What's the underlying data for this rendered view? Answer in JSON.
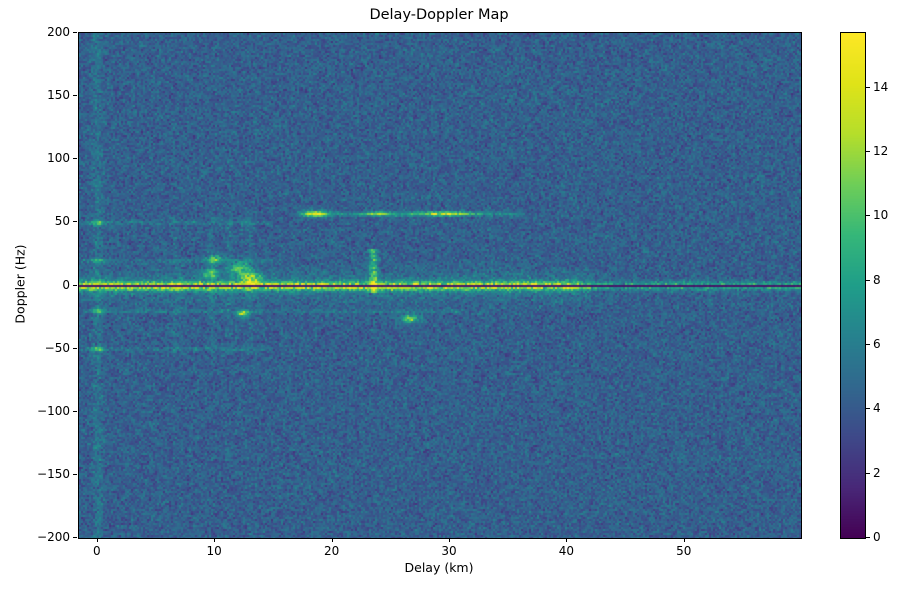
{
  "figure": {
    "title": "Delay-Doppler Map",
    "xlabel": "Delay (km)",
    "ylabel": "Doppler (Hz)"
  },
  "chart_data": {
    "type": "heatmap",
    "title": "Delay-Doppler Map",
    "xlabel": "Delay (km)",
    "ylabel": "Doppler (Hz)",
    "x_range": [
      -1.6,
      59.9
    ],
    "y_range": [
      -200,
      200
    ],
    "x_ticks": [
      0,
      10,
      20,
      30,
      40,
      50
    ],
    "y_ticks": [
      -200,
      -150,
      -100,
      -50,
      0,
      50,
      100,
      150,
      200
    ],
    "colorbar": {
      "range": [
        0,
        15.7
      ],
      "ticks": [
        0,
        2,
        4,
        6,
        8,
        10,
        12,
        14
      ],
      "colormap": "viridis"
    },
    "background_noise": {
      "mean": 4.3,
      "std": 0.85
    },
    "features": [
      {
        "kind": "glow",
        "doppler_sigma": 11,
        "delay_range": [
          -1.6,
          42
        ],
        "amp": 1.5,
        "note": "diffuse clutter around zero Doppler at near delays"
      },
      {
        "kind": "vline",
        "delay": 0,
        "doppler_range": [
          -200,
          200
        ],
        "amp": 1.3,
        "sigma_km": 0.45,
        "note": "zero-delay column"
      },
      {
        "kind": "vline",
        "delay": 6.6,
        "doppler_range": [
          -55,
          55
        ],
        "amp": 0.9,
        "sigma_km": 0.3
      },
      {
        "kind": "vline",
        "delay": 9.7,
        "doppler_range": [
          -55,
          55
        ],
        "amp": 0.9,
        "sigma_km": 0.3
      },
      {
        "kind": "vline",
        "delay": 11.2,
        "doppler_range": [
          -55,
          55
        ],
        "amp": 0.9,
        "sigma_km": 0.3
      },
      {
        "kind": "vline",
        "delay": 12.9,
        "doppler_range": [
          -55,
          55
        ],
        "amp": 1.0,
        "sigma_km": 0.3
      },
      {
        "kind": "vline",
        "delay": 23.5,
        "doppler_range": [
          -6,
          30
        ],
        "amp": 6.5,
        "sigma_km": 0.35,
        "note": "bright vertical streak at 23.5 km"
      },
      {
        "kind": "hline",
        "doppler": 57,
        "delay_range": [
          17,
          36
        ],
        "amp": 3.2,
        "sigma_hz": 1.6,
        "note": "target streak near +57 Hz"
      },
      {
        "kind": "hline",
        "doppler": 50,
        "delay_range": [
          -1.6,
          15
        ],
        "amp": 1.8,
        "sigma_hz": 1.3
      },
      {
        "kind": "hline",
        "doppler": -50,
        "delay_range": [
          -1.6,
          15
        ],
        "amp": 1.8,
        "sigma_hz": 1.3
      },
      {
        "kind": "hline",
        "doppler": 20,
        "delay_range": [
          -1.6,
          15
        ],
        "amp": 1.5,
        "sigma_hz": 1.3
      },
      {
        "kind": "hline",
        "doppler": -20,
        "delay_range": [
          -1.6,
          31
        ],
        "amp": 1.8,
        "sigma_hz": 1.3
      },
      {
        "kind": "blob",
        "delay": 0,
        "doppler": 50,
        "amp": 5,
        "sigma_km": 0.5,
        "sigma_hz": 2
      },
      {
        "kind": "blob",
        "delay": 0,
        "doppler": -50,
        "amp": 5,
        "sigma_km": 0.5,
        "sigma_hz": 2
      },
      {
        "kind": "blob",
        "delay": 0,
        "doppler": 20,
        "amp": 4,
        "sigma_km": 0.5,
        "sigma_hz": 2
      },
      {
        "kind": "blob",
        "delay": 0,
        "doppler": -20,
        "amp": 4,
        "sigma_km": 0.5,
        "sigma_hz": 2
      },
      {
        "kind": "blob",
        "delay": 10,
        "doppler": 21,
        "amp": 6,
        "sigma_km": 0.6,
        "sigma_hz": 3.5
      },
      {
        "kind": "blob",
        "delay": 9.6,
        "doppler": 10,
        "amp": 5,
        "sigma_km": 0.7,
        "sigma_hz": 4
      },
      {
        "kind": "blob",
        "delay": 12,
        "doppler": 14,
        "amp": 6,
        "sigma_km": 0.8,
        "sigma_hz": 5
      },
      {
        "kind": "blob",
        "delay": 13,
        "doppler": 6,
        "amp": 7,
        "sigma_km": 0.9,
        "sigma_hz": 5
      },
      {
        "kind": "blob",
        "delay": 12.3,
        "doppler": -22,
        "amp": 9,
        "sigma_km": 0.45,
        "sigma_hz": 2.5,
        "note": "bright spot below ridge at 12.3 km"
      },
      {
        "kind": "blob",
        "delay": 18.6,
        "doppler": 57,
        "amp": 9,
        "sigma_km": 1.1,
        "sigma_hz": 2.2,
        "note": "brightest +57 Hz segment near 18.6 km"
      },
      {
        "kind": "blob",
        "delay": 24,
        "doppler": 57,
        "amp": 5,
        "sigma_km": 1.4,
        "sigma_hz": 1.6
      },
      {
        "kind": "blob",
        "delay": 29.5,
        "doppler": 57,
        "amp": 7,
        "sigma_km": 2.2,
        "sigma_hz": 1.8
      },
      {
        "kind": "blob",
        "delay": 26.6,
        "doppler": -26,
        "amp": 7,
        "sigma_km": 0.8,
        "sigma_hz": 3
      },
      {
        "kind": "ridge_hline",
        "doppler": 0,
        "delay_range": [
          -1.6,
          59.9
        ],
        "peak_value": 13,
        "sigma_hz": 3.2,
        "fade_after_delay": 41,
        "faded_peak": 8,
        "note": "bright zero-Doppler clutter ridge across all delays"
      },
      {
        "kind": "dark_hline",
        "doppler": 0,
        "half_width_hz": 1.1,
        "value": 0.7,
        "note": "black notch exactly at 0 Hz"
      }
    ]
  }
}
